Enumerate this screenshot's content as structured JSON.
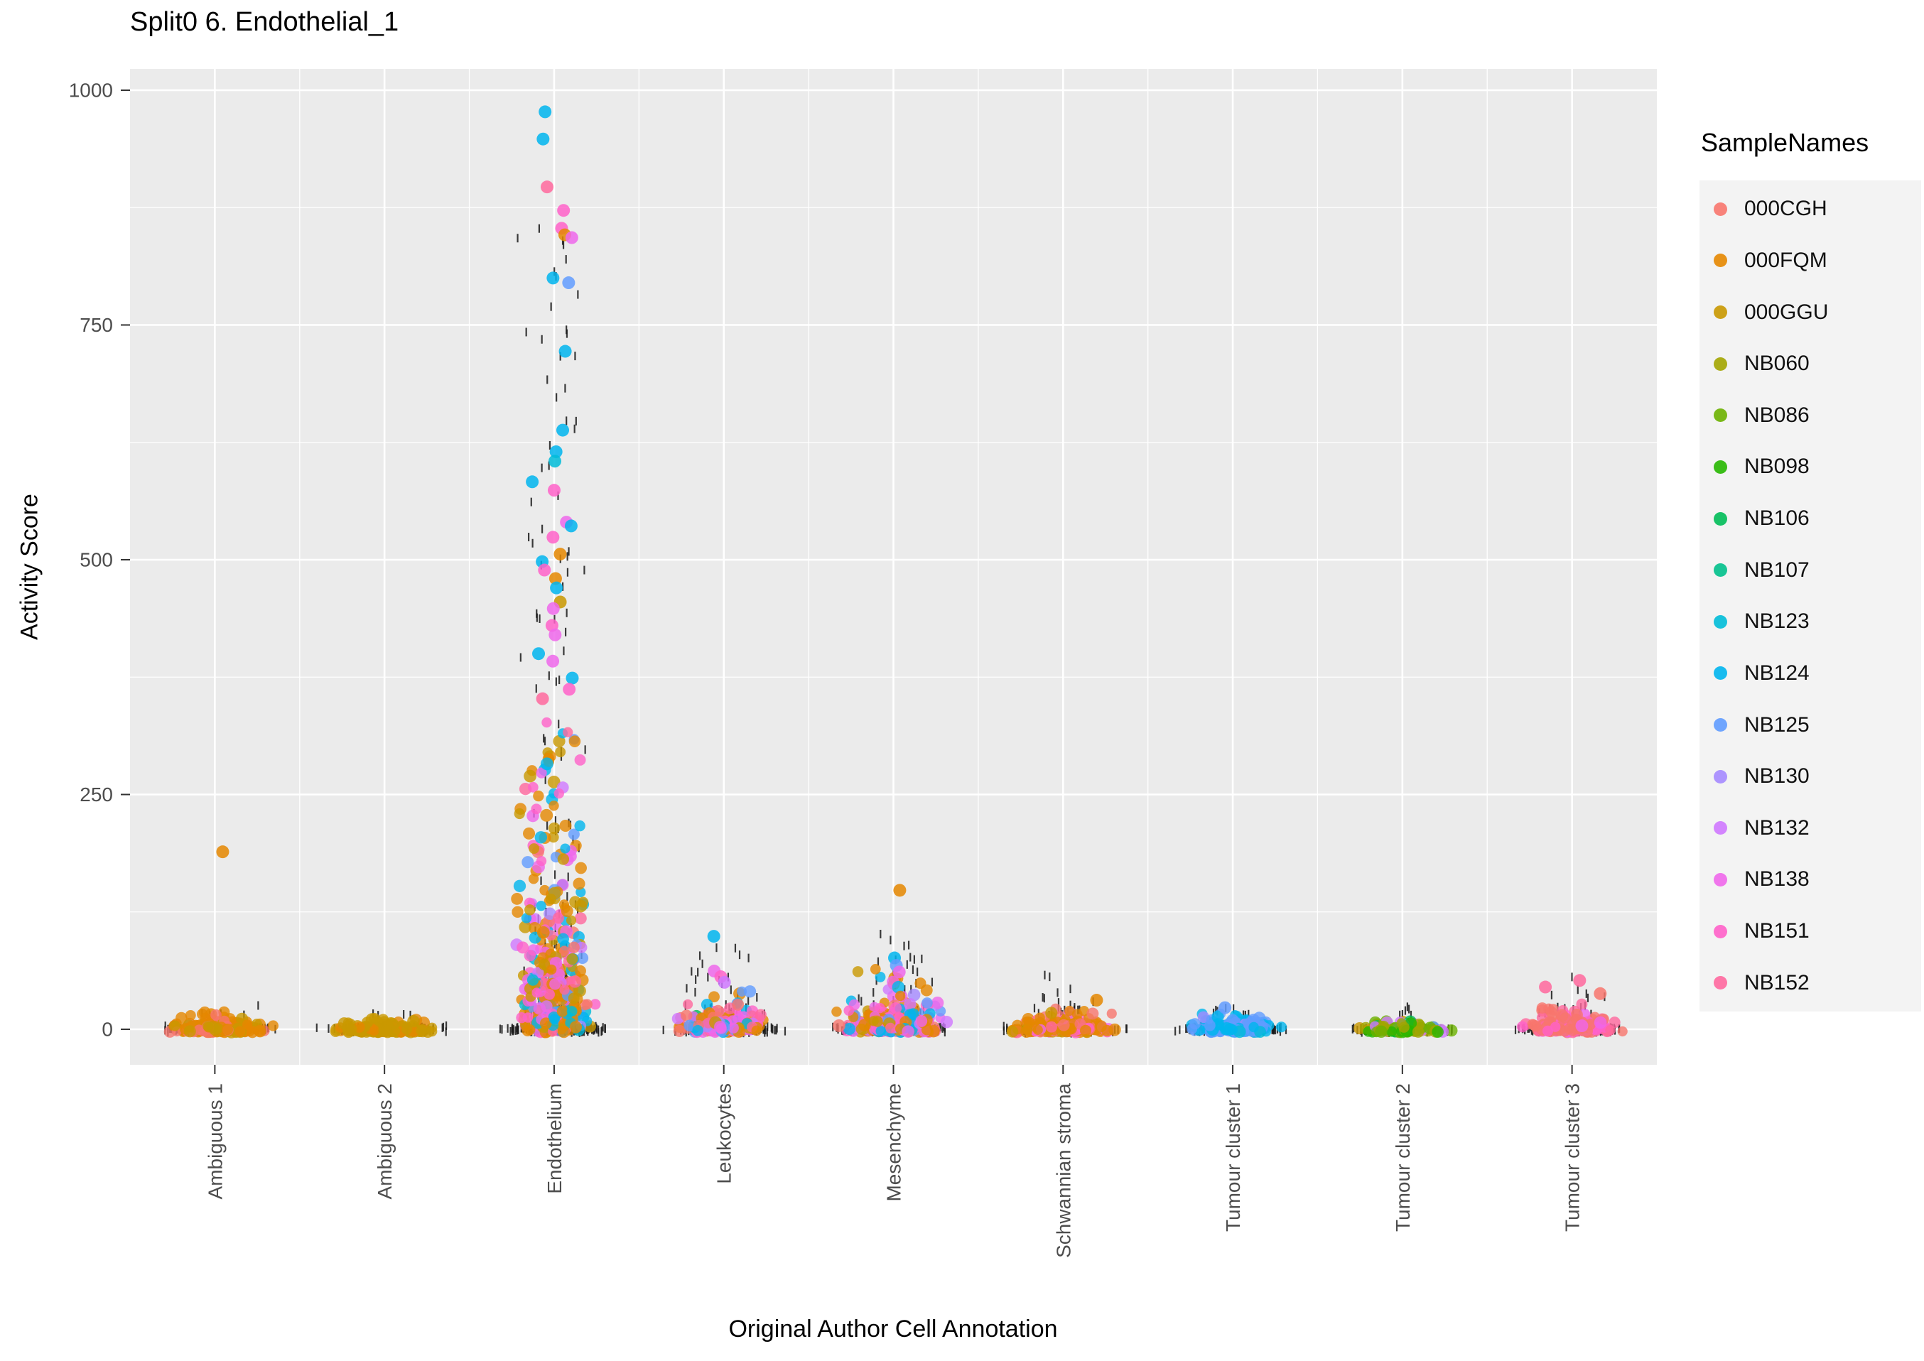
{
  "title": "Split0 6. Endothelial_1",
  "axes": {
    "x_label": "Original Author Cell Annotation",
    "y_label": "Activity Score",
    "y_ticks": [
      0,
      250,
      500,
      750,
      1000
    ],
    "y_minor": [
      125,
      375,
      625,
      875
    ]
  },
  "legend": {
    "title": "SampleNames",
    "entries": [
      {
        "label": "000CGH",
        "color": "#F8766D"
      },
      {
        "label": "000FQM",
        "color": "#E58700"
      },
      {
        "label": "000GGU",
        "color": "#C99800"
      },
      {
        "label": "NB060",
        "color": "#A3A500"
      },
      {
        "label": "NB086",
        "color": "#6BB100"
      },
      {
        "label": "NB098",
        "color": "#26B700"
      },
      {
        "label": "NB106",
        "color": "#00BC58"
      },
      {
        "label": "NB107",
        "color": "#00C08B"
      },
      {
        "label": "NB123",
        "color": "#00BCD8"
      },
      {
        "label": "NB124",
        "color": "#00B5EE"
      },
      {
        "label": "NB125",
        "color": "#619CFF"
      },
      {
        "label": "NB130",
        "color": "#A58AFF"
      },
      {
        "label": "NB132",
        "color": "#CF78FF"
      },
      {
        "label": "NB138",
        "color": "#EF67EB"
      },
      {
        "label": "NB151",
        "color": "#FF61C9"
      },
      {
        "label": "NB152",
        "color": "#FF689E"
      }
    ]
  },
  "chart_data": {
    "type": "scatter",
    "variant": "jitter-strip-plot",
    "title": "Split0 6. Endothelial_1",
    "xlabel": "Original Author Cell Annotation",
    "ylabel": "Activity Score",
    "ylim": [
      0,
      1000
    ],
    "yticks": [
      0,
      250,
      500,
      750,
      1000
    ],
    "grid": "major-and-minor-white-on-gray",
    "legend_position": "right",
    "point_alpha": 0.8,
    "strip_dash_color": "#1A1A1A",
    "categories": [
      "Ambiguous 1",
      "Ambiguous 2",
      "Endothelium",
      "Leukocytes",
      "Mesenchyme",
      "Schwannian stroma",
      "Tumour cluster 1",
      "Tumour cluster 2",
      "Tumour cluster 3"
    ],
    "groups": [
      {
        "category": "Ambiguous 1",
        "bulk": {
          "count": 150,
          "exp_scale": 5,
          "y_max": 22,
          "x_width": 88
        },
        "weights": [
          [
            "000FQM",
            0.72
          ],
          [
            "000CGH",
            0.16
          ],
          [
            "000GGU",
            0.12
          ]
        ],
        "strip": {
          "count": 230,
          "x_width": 100,
          "tall_count": 6,
          "tall_max": 28
        },
        "outliers": [
          [
            "000FQM",
            189
          ]
        ]
      },
      {
        "category": "Ambiguous 2",
        "bulk": {
          "count": 160,
          "exp_scale": 4,
          "y_max": 15,
          "x_width": 88
        },
        "weights": [
          [
            "000GGU",
            0.86
          ],
          [
            "000FQM",
            0.14
          ]
        ],
        "strip": {
          "count": 230,
          "x_width": 100,
          "tall_count": 4,
          "tall_max": 20
        },
        "outliers": []
      },
      {
        "category": "Endothelium",
        "bulk": {
          "count": 340,
          "exp_scale": 85,
          "y_max": 345,
          "x_width": 66
        },
        "weights": [
          [
            "000FQM",
            0.26
          ],
          [
            "000GGU",
            0.15
          ],
          [
            "NB124",
            0.16
          ],
          [
            "NB123",
            0.04
          ],
          [
            "NB138",
            0.11
          ],
          [
            "NB151",
            0.08
          ],
          [
            "NB152",
            0.05
          ],
          [
            "NB132",
            0.04
          ],
          [
            "NB130",
            0.03
          ],
          [
            "000CGH",
            0.04
          ],
          [
            "NB125",
            0.04
          ]
        ],
        "strip": {
          "count": 240,
          "x_width": 95,
          "tall_count": 130,
          "tall_max": 858
        },
        "outliers": [
          [
            "NB124",
            977
          ],
          [
            "NB124",
            948
          ],
          [
            "NB152",
            897
          ],
          [
            "NB151",
            872
          ],
          [
            "NB151",
            853
          ],
          [
            "000FQM",
            846
          ],
          [
            "NB138",
            843
          ],
          [
            "NB124",
            800
          ],
          [
            "NB125",
            795
          ],
          [
            "NB124",
            722
          ],
          [
            "NB124",
            638
          ],
          [
            "NB124",
            615
          ],
          [
            "NB123",
            605
          ],
          [
            "NB124",
            583
          ],
          [
            "NB151",
            574
          ],
          [
            "NB138",
            540
          ],
          [
            "NB124",
            536
          ],
          [
            "NB151",
            524
          ],
          [
            "000FQM",
            506
          ],
          [
            "NB124",
            498
          ],
          [
            "NB151",
            489
          ],
          [
            "000FQM",
            480
          ],
          [
            "NB124",
            470
          ],
          [
            "000GGU",
            455
          ],
          [
            "NB138",
            448
          ],
          [
            "NB151",
            430
          ],
          [
            "NB138",
            420
          ],
          [
            "NB124",
            400
          ],
          [
            "NB138",
            392
          ],
          [
            "NB124",
            374
          ],
          [
            "NB151",
            362
          ],
          [
            "NB152",
            352
          ]
        ]
      },
      {
        "category": "Leukocytes",
        "bulk": {
          "count": 180,
          "exp_scale": 9,
          "y_max": 46,
          "x_width": 82
        },
        "weights": [
          [
            "NB138",
            0.18
          ],
          [
            "NB151",
            0.14
          ],
          [
            "000FQM",
            0.14
          ],
          [
            "000CGH",
            0.1
          ],
          [
            "NB152",
            0.1
          ],
          [
            "NB124",
            0.08
          ],
          [
            "NB125",
            0.08
          ],
          [
            "000GGU",
            0.06
          ],
          [
            "NB132",
            0.06
          ],
          [
            "NB106",
            0.03
          ],
          [
            "NB130",
            0.03
          ]
        ],
        "strip": {
          "count": 240,
          "x_width": 100,
          "tall_count": 40,
          "tall_max": 90
        },
        "outliers": [
          [
            "NB124",
            99
          ],
          [
            "NB138",
            62
          ],
          [
            "NB151",
            56
          ],
          [
            "NB132",
            50
          ]
        ]
      },
      {
        "category": "Mesenchyme",
        "bulk": {
          "count": 270,
          "exp_scale": 12,
          "y_max": 68,
          "x_width": 92
        },
        "weights": [
          [
            "000FQM",
            0.28
          ],
          [
            "NB138",
            0.16
          ],
          [
            "NB151",
            0.12
          ],
          [
            "000GGU",
            0.1
          ],
          [
            "NB124",
            0.09
          ],
          [
            "NB125",
            0.08
          ],
          [
            "NB152",
            0.06
          ],
          [
            "000CGH",
            0.05
          ],
          [
            "NB132",
            0.04
          ],
          [
            "NB130",
            0.02
          ]
        ],
        "strip": {
          "count": 260,
          "x_width": 105,
          "tall_count": 40,
          "tall_max": 102
        },
        "outliers": [
          [
            "000FQM",
            148
          ],
          [
            "NB124",
            76
          ],
          [
            "NB125",
            68
          ],
          [
            "NB138",
            61
          ]
        ]
      },
      {
        "category": "Schwannian stroma",
        "bulk": {
          "count": 210,
          "exp_scale": 6,
          "y_max": 26,
          "x_width": 92
        },
        "weights": [
          [
            "000FQM",
            0.58
          ],
          [
            "000CGH",
            0.12
          ],
          [
            "000GGU",
            0.1
          ],
          [
            "NB151",
            0.08
          ],
          [
            "NB138",
            0.06
          ],
          [
            "NB152",
            0.06
          ]
        ],
        "strip": {
          "count": 240,
          "x_width": 102,
          "tall_count": 22,
          "tall_max": 58
        },
        "outliers": [
          [
            "000FQM",
            31
          ]
        ]
      },
      {
        "category": "Tumour cluster 1",
        "bulk": {
          "count": 120,
          "exp_scale": 6,
          "y_max": 20,
          "x_width": 80
        },
        "weights": [
          [
            "NB125",
            0.54
          ],
          [
            "NB124",
            0.34
          ],
          [
            "NB130",
            0.06
          ],
          [
            "NB123",
            0.06
          ]
        ],
        "strip": {
          "count": 180,
          "x_width": 95,
          "tall_count": 8,
          "tall_max": 28
        },
        "outliers": [
          [
            "NB125",
            23
          ]
        ]
      },
      {
        "category": "Tumour cluster 2",
        "bulk": {
          "count": 110,
          "exp_scale": 4,
          "y_max": 14,
          "x_width": 78
        },
        "weights": [
          [
            "NB060",
            0.3
          ],
          [
            "NB086",
            0.24
          ],
          [
            "NB098",
            0.14
          ],
          [
            "NB106",
            0.1
          ],
          [
            "NB132",
            0.1
          ],
          [
            "000GGU",
            0.06
          ],
          [
            "NB125",
            0.06
          ]
        ],
        "strip": {
          "count": 180,
          "x_width": 95,
          "tall_count": 6,
          "tall_max": 24
        },
        "outliers": []
      },
      {
        "category": "Tumour cluster 3",
        "bulk": {
          "count": 170,
          "exp_scale": 7,
          "y_max": 30,
          "x_width": 86
        },
        "weights": [
          [
            "000CGH",
            0.52
          ],
          [
            "NB152",
            0.3
          ],
          [
            "NB151",
            0.1
          ],
          [
            "NB138",
            0.08
          ]
        ],
        "strip": {
          "count": 210,
          "x_width": 100,
          "tall_count": 18,
          "tall_max": 56
        },
        "outliers": [
          [
            "NB152",
            52
          ],
          [
            "NB152",
            45
          ],
          [
            "000CGH",
            38
          ]
        ]
      }
    ]
  }
}
